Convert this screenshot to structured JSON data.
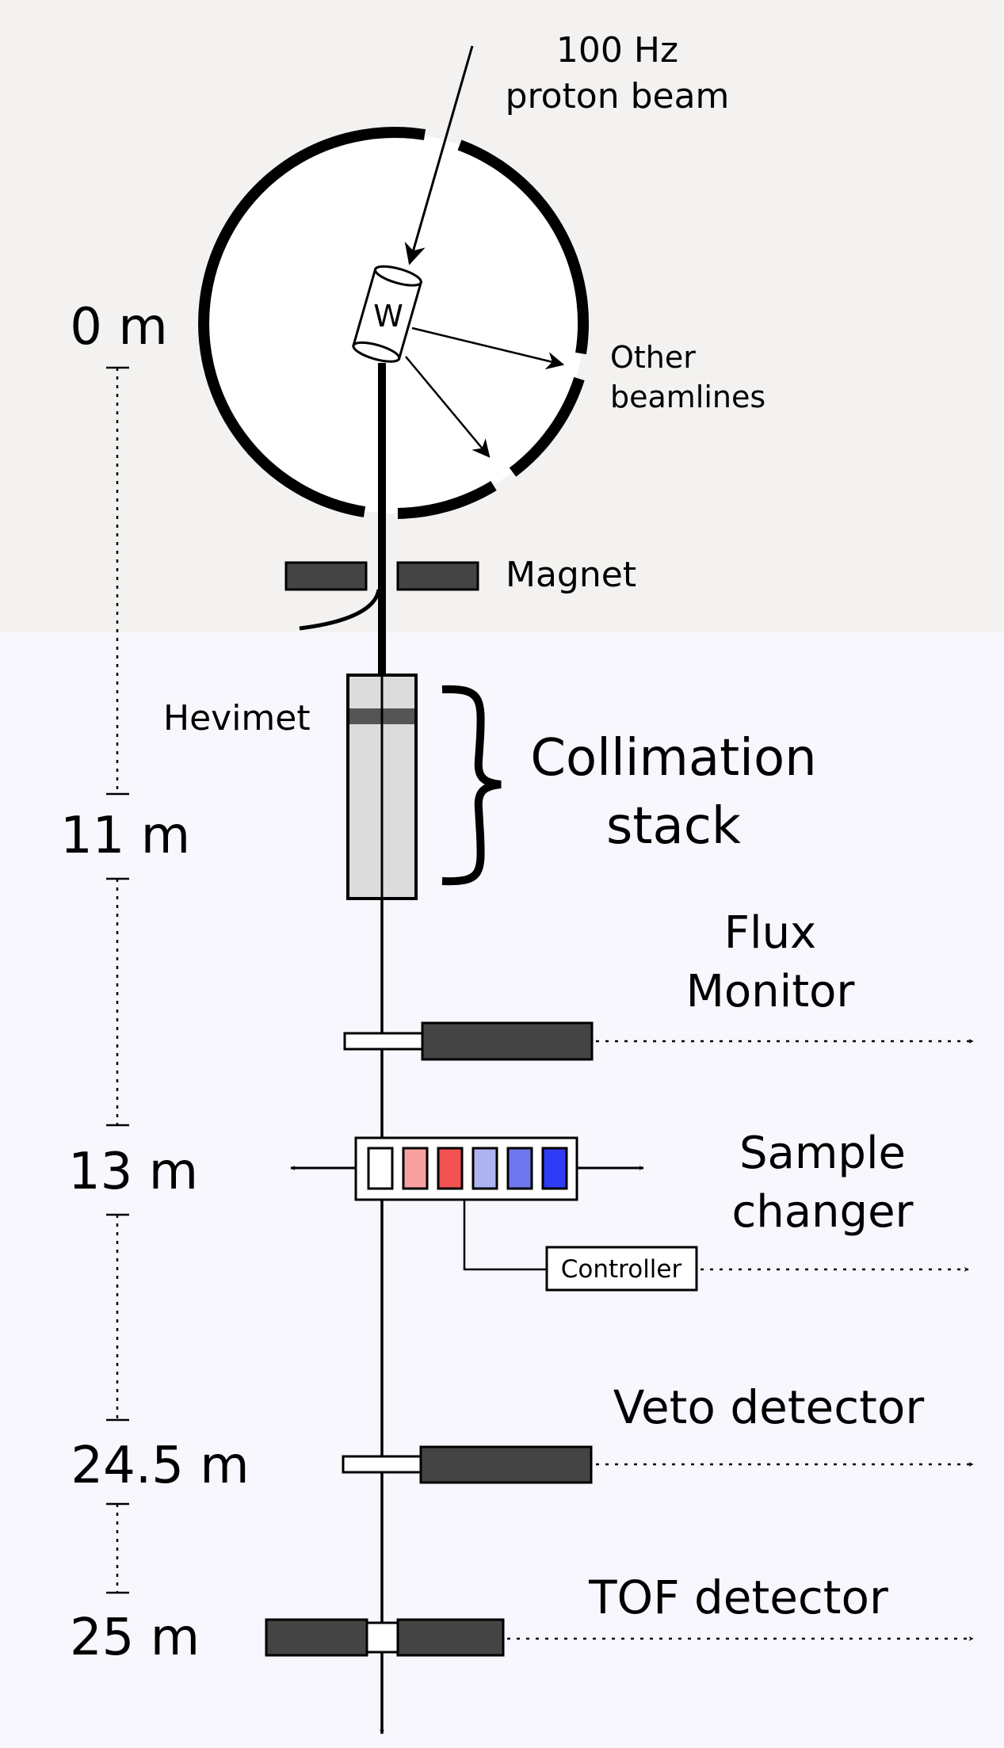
{
  "beam": {
    "line1": "100 Hz",
    "line2": "proton beam"
  },
  "target": {
    "label": "W"
  },
  "other_beamlines": {
    "line1": "Other",
    "line2": "beamlines"
  },
  "magnet": {
    "label": "Magnet"
  },
  "hevimet": {
    "label": "Hevimet"
  },
  "collimation": {
    "line1": "Collimation",
    "line2": "stack"
  },
  "flux_monitor": {
    "line1": "Flux",
    "line2": "Monitor"
  },
  "sample_changer": {
    "line1": "Sample",
    "line2": "changer",
    "controller_label": "Controller",
    "sample_colors": [
      "#ffffff",
      "#f7a1a1",
      "#f25252",
      "#aeb4f2",
      "#6f77ef",
      "#2f3cf5"
    ]
  },
  "veto_detector": {
    "label": "Veto detector"
  },
  "tof_detector": {
    "label": "TOF detector"
  },
  "distances": [
    "0 m",
    "11 m",
    "13 m",
    "24.5 m",
    "25 m"
  ],
  "colors": {
    "top_region": "#f3f2f0",
    "bottom_region": "#f7f7fd",
    "detector_fill": "#444444",
    "collimator_fill": "#dcdcdc",
    "hevimet_band": "#555555"
  }
}
